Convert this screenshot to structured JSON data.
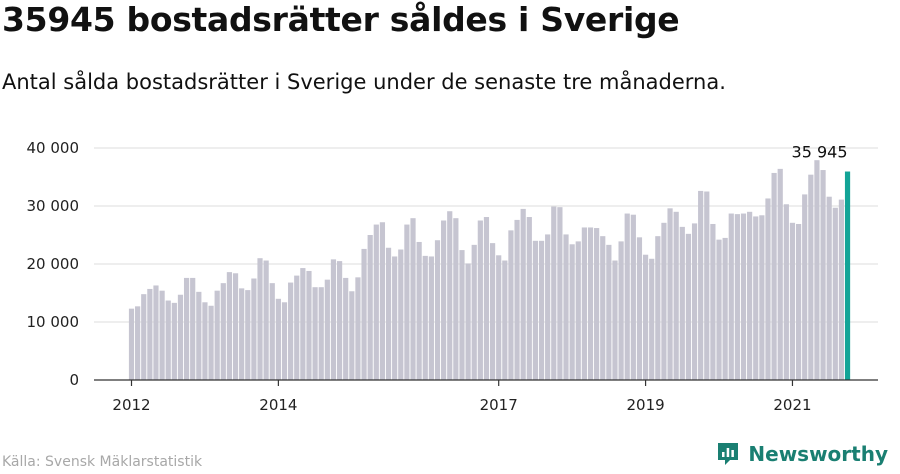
{
  "header": {
    "title": "35945 bostadsrätter såldes i Sverige",
    "subtitle": "Antal sålda bostadsrätter i Sverige under de senaste tre månaderna."
  },
  "footer": {
    "source": "Källa: Svensk Mäklarstatistik",
    "brand": "Newsworthy",
    "brand_icon": "newsworthy-logo-icon"
  },
  "colors": {
    "bar": "#c6c5d1",
    "highlight": "#13a497",
    "grid": "#dddddd",
    "axis": "#333333",
    "brand": "#1a7f72"
  },
  "chart_data": {
    "type": "bar",
    "title": "35945 bostadsrätter såldes i Sverige",
    "subtitle": "Antal sålda bostadsrätter i Sverige under de senaste tre månaderna.",
    "ylim": [
      0,
      40000
    ],
    "y_ticks": [
      0,
      10000,
      20000,
      30000,
      40000
    ],
    "y_tick_labels": [
      "0",
      "10 000",
      "20 000",
      "30 000",
      "40 000"
    ],
    "x_ticks": [
      "2012",
      "2014",
      "2017",
      "2019",
      "2021"
    ],
    "grid": "horizontal",
    "last_value_label": "35 945",
    "x_start": "2012-01",
    "values": [
      12300,
      12700,
      14800,
      15700,
      16300,
      15400,
      13700,
      13300,
      14700,
      17600,
      17600,
      15200,
      13400,
      12800,
      15400,
      16700,
      18600,
      18400,
      15800,
      15500,
      17500,
      21000,
      20600,
      16700,
      14000,
      13400,
      16800,
      18000,
      19300,
      18800,
      16000,
      16000,
      17300,
      20800,
      20500,
      17600,
      15300,
      17700,
      22600,
      25000,
      26800,
      27200,
      22800,
      21300,
      22500,
      26800,
      27900,
      23800,
      21400,
      21300,
      24100,
      27500,
      29100,
      27900,
      22400,
      20100,
      23300,
      27500,
      28100,
      23600,
      21500,
      20600,
      25800,
      27600,
      29500,
      28100,
      24000,
      24000,
      25100,
      29900,
      29800,
      25100,
      23400,
      23900,
      26300,
      26300,
      26200,
      24800,
      23300,
      20600,
      23900,
      28700,
      28500,
      24600,
      21600,
      20900,
      24800,
      27100,
      29600,
      29000,
      26400,
      25200,
      27000,
      32600,
      32500,
      26900,
      24200,
      24500,
      28700,
      28600,
      28700,
      29000,
      28200,
      28400,
      31300,
      35700,
      36400,
      30300,
      27100,
      26900,
      32000,
      35400,
      37900,
      36200,
      31600,
      29700,
      31100,
      35945
    ]
  }
}
